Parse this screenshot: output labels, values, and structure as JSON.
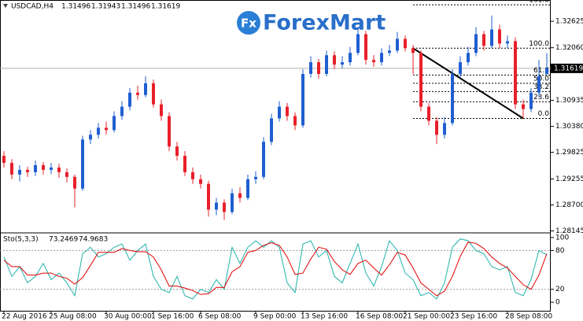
{
  "chart_data": {
    "type": "candlestick",
    "title": "USDCAD,H4",
    "logo_mark": "Fx",
    "logo": "ForexMart",
    "bull_color": "#1f5fd0",
    "bear_color": "#e8202a",
    "candles": [
      [
        1.2975,
        1.2985,
        1.295,
        1.296
      ],
      [
        1.296,
        1.2968,
        1.2925,
        1.2935
      ],
      [
        1.2935,
        1.2955,
        1.292,
        1.2945
      ],
      [
        1.2945,
        1.2952,
        1.293,
        1.294
      ],
      [
        1.294,
        1.2965,
        1.2932,
        1.2955
      ],
      [
        1.2955,
        1.2962,
        1.2935,
        1.2945
      ],
      [
        1.2945,
        1.296,
        1.2936,
        1.295
      ],
      [
        1.295,
        1.2958,
        1.2928,
        1.294
      ],
      [
        1.294,
        1.2948,
        1.2918,
        1.293
      ],
      [
        1.293,
        1.2935,
        1.2865,
        1.2905
      ],
      [
        1.2905,
        1.3018,
        1.29,
        1.301
      ],
      [
        1.301,
        1.303,
        1.3,
        1.302
      ],
      [
        1.302,
        1.3045,
        1.3012,
        1.3035
      ],
      [
        1.3035,
        1.3048,
        1.302,
        1.303
      ],
      [
        1.303,
        1.307,
        1.3025,
        1.306
      ],
      [
        1.306,
        1.3092,
        1.3052,
        1.308
      ],
      [
        1.308,
        1.312,
        1.3072,
        1.311
      ],
      [
        1.311,
        1.3125,
        1.3095,
        1.3105
      ],
      [
        1.3105,
        1.3145,
        1.31,
        1.313
      ],
      [
        1.313,
        1.3138,
        1.3078,
        1.3085
      ],
      [
        1.3085,
        1.3095,
        1.305,
        1.306
      ],
      [
        1.306,
        1.3068,
        1.2985,
        1.2995
      ],
      [
        1.2995,
        1.3005,
        1.2965,
        1.2975
      ],
      [
        1.2975,
        1.2985,
        1.2932,
        1.294
      ],
      [
        1.294,
        1.295,
        1.2915,
        1.2925
      ],
      [
        1.2925,
        1.2935,
        1.2905,
        1.2915
      ],
      [
        1.2915,
        1.2922,
        1.2845,
        1.286
      ],
      [
        1.286,
        1.2885,
        1.2848,
        1.2875
      ],
      [
        1.2875,
        1.2882,
        1.2838,
        1.2855
      ],
      [
        1.2855,
        1.2905,
        1.285,
        1.2895
      ],
      [
        1.2895,
        1.2908,
        1.2875,
        1.2885
      ],
      [
        1.2885,
        1.2935,
        1.288,
        1.2925
      ],
      [
        1.2925,
        1.2942,
        1.2915,
        1.293
      ],
      [
        1.293,
        1.3015,
        1.2925,
        1.3005
      ],
      [
        1.3005,
        1.3065,
        1.2998,
        1.3055
      ],
      [
        1.3055,
        1.3092,
        1.3048,
        1.308
      ],
      [
        1.308,
        1.3088,
        1.305,
        1.306
      ],
      [
        1.306,
        1.3068,
        1.303,
        1.304
      ],
      [
        1.304,
        1.316,
        1.3035,
        1.315
      ],
      [
        1.315,
        1.3188,
        1.3142,
        1.3175
      ],
      [
        1.3175,
        1.3182,
        1.314,
        1.315
      ],
      [
        1.315,
        1.32,
        1.3145,
        1.319
      ],
      [
        1.319,
        1.3198,
        1.316,
        1.317
      ],
      [
        1.317,
        1.3188,
        1.3162,
        1.3175
      ],
      [
        1.3175,
        1.3208,
        1.3168,
        1.3195
      ],
      [
        1.3195,
        1.325,
        1.319,
        1.3235
      ],
      [
        1.3235,
        1.3242,
        1.317,
        1.318
      ],
      [
        1.318,
        1.319,
        1.3165,
        1.3175
      ],
      [
        1.3175,
        1.3205,
        1.3168,
        1.3195
      ],
      [
        1.3195,
        1.3212,
        1.3188,
        1.32
      ],
      [
        1.32,
        1.324,
        1.3195,
        1.3225
      ],
      [
        1.3225,
        1.3232,
        1.3198,
        1.3205
      ],
      [
        1.3205,
        1.3212,
        1.315,
        1.3195
      ],
      [
        1.3195,
        1.32,
        1.307,
        1.308
      ],
      [
        1.308,
        1.3088,
        1.304,
        1.305
      ],
      [
        1.305,
        1.3058,
        1.3,
        1.302
      ],
      [
        1.302,
        1.3058,
        1.3012,
        1.3045
      ],
      [
        1.3045,
        1.316,
        1.304,
        1.315
      ],
      [
        1.315,
        1.3188,
        1.3142,
        1.3175
      ],
      [
        1.3175,
        1.3208,
        1.3168,
        1.3195
      ],
      [
        1.3195,
        1.325,
        1.3188,
        1.3235
      ],
      [
        1.3235,
        1.3242,
        1.32,
        1.321
      ],
      [
        1.321,
        1.3275,
        1.3205,
        1.3245
      ],
      [
        1.3245,
        1.3255,
        1.3205,
        1.3215
      ],
      [
        1.3215,
        1.3232,
        1.3205,
        1.322
      ],
      [
        1.322,
        1.3228,
        1.3075,
        1.3085
      ],
      [
        1.3085,
        1.3095,
        1.3055,
        1.3075
      ],
      [
        1.3075,
        1.312,
        1.3068,
        1.311
      ],
      [
        1.311,
        1.318,
        1.31,
        1.3145
      ],
      [
        1.31496,
        1.31943,
        1.31496,
        1.31619
      ]
    ],
    "xlim": [
      -0.5,
      69.5
    ],
    "ylim": [
      1.2812,
      1.3308
    ],
    "yticks": [
      1.32625,
      {
        "value": 1.3206,
        "label": "1.32060"
      },
      1.30935,
      {
        "value": 1.3038,
        "label": "1.30380"
      },
      1.29825,
      1.29255,
      {
        "value": 1.287,
        "label": "1.28700"
      },
      1.28145
    ],
    "xticks": [
      {
        "value": 0,
        "label": "22 Aug 2016"
      },
      {
        "value": 6,
        "label": "25 Aug 08:00"
      },
      {
        "value": 13,
        "label": "30 Aug 00:00"
      },
      {
        "value": 19,
        "label": "1 Sep 16:00"
      },
      {
        "value": 25,
        "label": "6 Sep 08:00"
      },
      {
        "value": 32,
        "label": "9 Sep 00:00"
      },
      {
        "value": 38,
        "label": "13 Sep 16:00"
      },
      {
        "value": 45,
        "label": "16 Sep 08:00"
      },
      {
        "value": 51,
        "label": "21 Sep 00:00"
      },
      {
        "value": 57,
        "label": "23 Sep 16:00"
      },
      {
        "value": 64,
        "label": "28 Sep 08:00"
      }
    ],
    "fibonacci": {
      "from": 52,
      "to": 66,
      "high": 1.3205,
      "low": 1.3055,
      "levels": [
        {
          "value": 161.8,
          "label": "161.8"
        },
        {
          "value": 100,
          "label": "100.0"
        },
        {
          "value": 61.8,
          "label": "61.8"
        },
        {
          "value": 50,
          "label": "50.0"
        },
        {
          "value": 38.2,
          "label": "38.2"
        },
        {
          "value": 23.6,
          "label": "23.6"
        },
        {
          "value": 0,
          "label": "0.0"
        }
      ]
    },
    "indicator": {
      "title": "Sto(5,3,3)",
      "ylim": [
        -12,
        106
      ],
      "yticks": [
        100,
        80,
        20,
        0
      ],
      "levels": [
        80,
        20
      ],
      "series": [
        {
          "color": "#20b2aa",
          "values": [
            70,
            40,
            55,
            30,
            40,
            60,
            35,
            45,
            30,
            10,
            75,
            85,
            70,
            75,
            85,
            90,
            65,
            80,
            90,
            40,
            20,
            15,
            40,
            10,
            5,
            20,
            15,
            35,
            20,
            85,
            60,
            85,
            95,
            85,
            95,
            85,
            30,
            15,
            90,
            95,
            70,
            80,
            40,
            30,
            60,
            90,
            45,
            25,
            55,
            95,
            80,
            45,
            35,
            10,
            15,
            5,
            30,
            85,
            98,
            95,
            80,
            75,
            55,
            50,
            55,
            15,
            10,
            35,
            80,
            73.2469
          ]
        },
        {
          "color": "#e00000",
          "values": [
            65,
            55,
            55,
            42,
            42,
            45,
            45,
            40,
            37,
            28,
            38,
            57,
            77,
            77,
            77,
            83,
            80,
            78,
            78,
            70,
            50,
            25,
            25,
            22,
            18,
            12,
            13,
            23,
            23,
            47,
            55,
            77,
            80,
            88,
            92,
            88,
            70,
            43,
            45,
            67,
            85,
            82,
            63,
            50,
            43,
            60,
            65,
            53,
            42,
            58,
            77,
            73,
            53,
            30,
            20,
            10,
            17,
            40,
            71,
            93,
            91,
            83,
            70,
            60,
            53,
            40,
            27,
            20,
            42,
            74.9683
          ]
        }
      ]
    }
  }
}
